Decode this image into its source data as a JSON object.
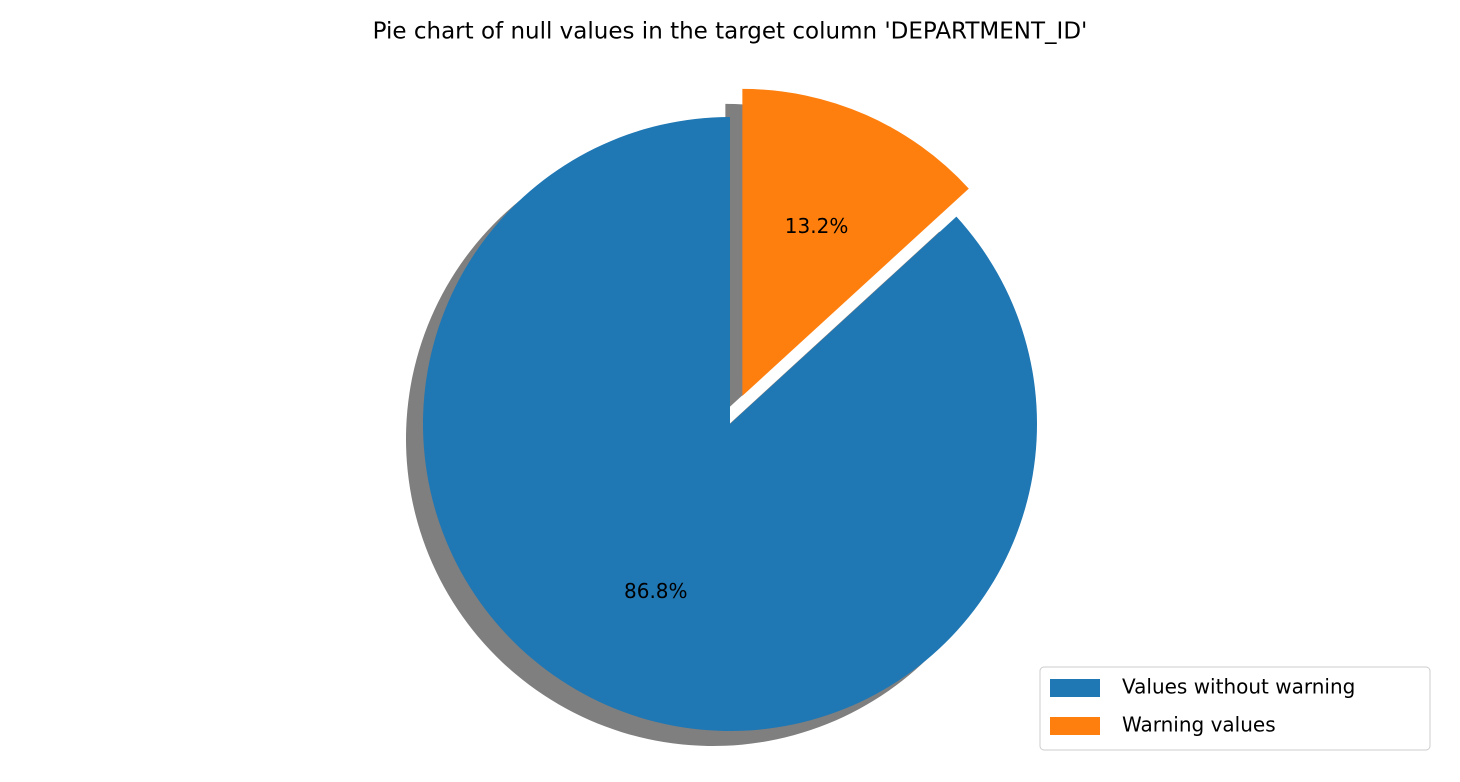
{
  "chart_data": {
    "type": "pie",
    "title": "Pie chart of null values in the target column 'DEPARTMENT_ID'",
    "categories": [
      "Values without warning",
      "Warning values"
    ],
    "values": [
      86.8,
      13.2
    ],
    "value_labels": [
      "86.8%",
      "13.2%"
    ],
    "colors": [
      "#1f77b4",
      "#ff7f0e"
    ],
    "explode": [
      0,
      0.1
    ],
    "shadow": true,
    "legend": "lower right"
  }
}
